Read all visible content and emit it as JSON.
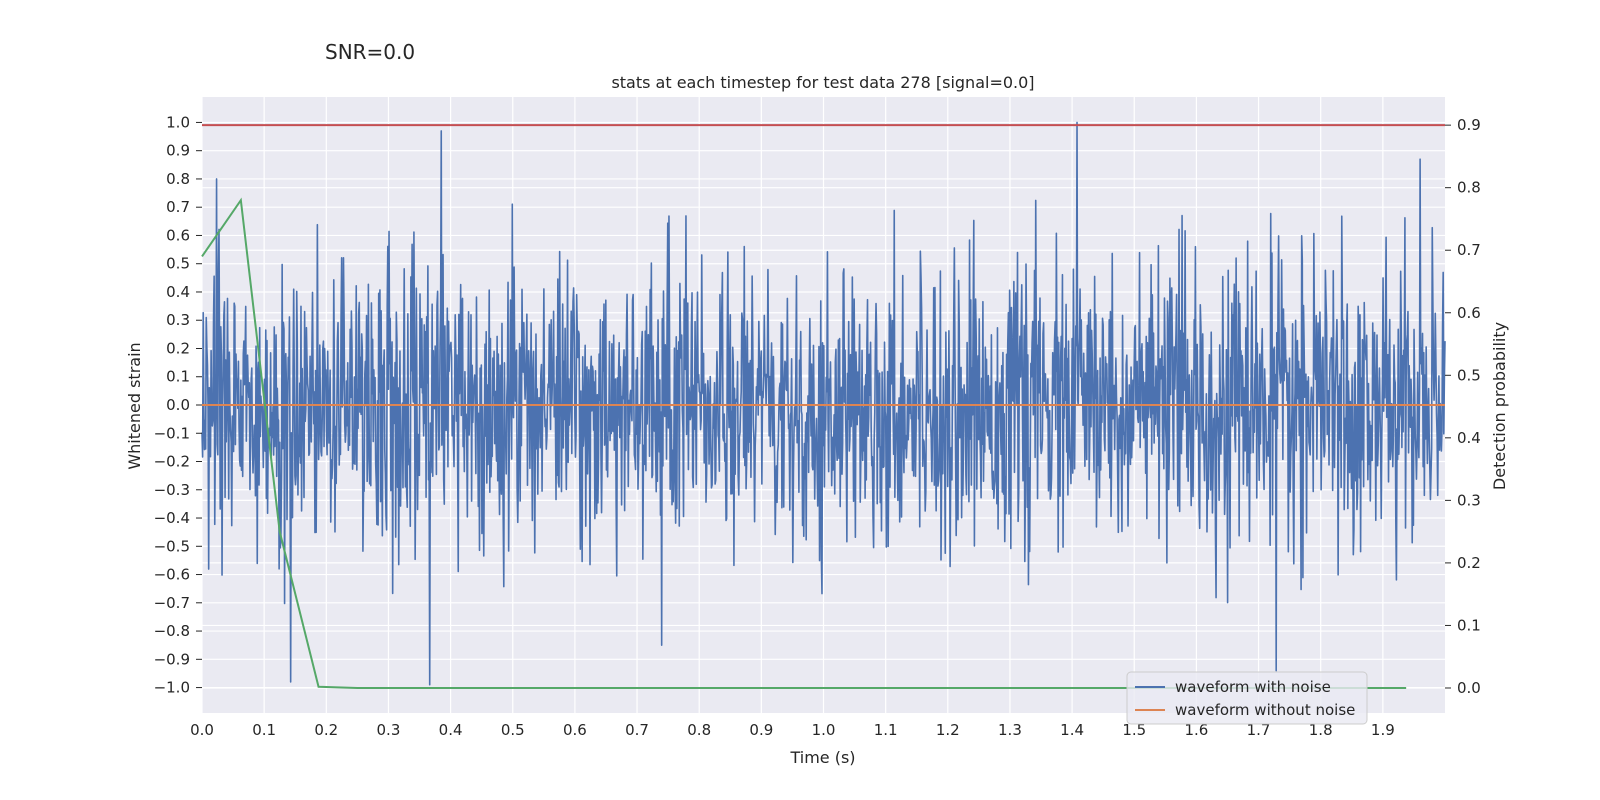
{
  "figure": {
    "suptitle": "SNR=0.0"
  },
  "chart_data": {
    "type": "line",
    "title": "stats at each timestep for test data 278 [signal=0.0]",
    "xlabel": "Time (s)",
    "ylabel": "Whitened strain",
    "y2label": "Detection probability",
    "xlim": [
      0.0,
      2.0
    ],
    "ylim": [
      -1.09,
      1.09
    ],
    "y2lim": [
      -0.04,
      0.945
    ],
    "x_ticks": [
      "0.0",
      "0.1",
      "0.2",
      "0.3",
      "0.4",
      "0.5",
      "0.6",
      "0.7",
      "0.8",
      "0.9",
      "1.0",
      "1.1",
      "1.2",
      "1.3",
      "1.4",
      "1.5",
      "1.6",
      "1.7",
      "1.8",
      "1.9"
    ],
    "y_ticks": [
      "1.0",
      "0.9",
      "0.8",
      "0.7",
      "0.6",
      "0.5",
      "0.4",
      "0.3",
      "0.2",
      "0.1",
      "0.0",
      "-0.1",
      "-0.2",
      "-0.3",
      "-0.4",
      "-0.5",
      "-0.6",
      "-0.7",
      "-0.8",
      "-0.9",
      "-1.0"
    ],
    "y2_ticks": [
      "0.9",
      "0.8",
      "0.7",
      "0.6",
      "0.5",
      "0.4",
      "0.3",
      "0.2",
      "0.1",
      "0.0"
    ],
    "grid": true,
    "legend_position": "lower-right",
    "series": [
      {
        "name": "waveform with noise",
        "axis": "left",
        "color": "#4c72b0",
        "description_samples": "noise 2048 samples, approx range -0.97 to 1.0",
        "peaks": [
          {
            "x": 0.023,
            "y": 0.8
          },
          {
            "x": 0.385,
            "y": 0.97
          },
          {
            "x": 0.366,
            "y": -0.99
          },
          {
            "x": 1.408,
            "y": 1.0
          },
          {
            "x": 1.728,
            "y": -0.94
          },
          {
            "x": 1.96,
            "y": 0.87
          },
          {
            "x": 0.143,
            "y": -0.98
          },
          {
            "x": 0.74,
            "y": -0.85
          }
        ]
      },
      {
        "name": "waveform without noise",
        "axis": "left",
        "color": "#dd8452",
        "x": [
          0.0,
          2.0
        ],
        "y": [
          0.0,
          0.0
        ]
      },
      {
        "name": "",
        "axis": "right",
        "color": "#55a868",
        "x": [
          0.0,
          0.0625,
          0.125,
          0.1875,
          0.25,
          0.3125,
          1.9375
        ],
        "y": [
          0.69,
          0.78,
          0.25,
          0.002,
          0.0,
          0.0,
          0.0
        ]
      },
      {
        "name": "",
        "axis": "right",
        "color": "#c44e52",
        "x": [
          0.0,
          2.0
        ],
        "y": [
          0.9,
          0.9
        ]
      }
    ]
  },
  "colors": {
    "plot_bg": "#eaeaf2",
    "grid": "#ffffff",
    "text": "#262626"
  }
}
